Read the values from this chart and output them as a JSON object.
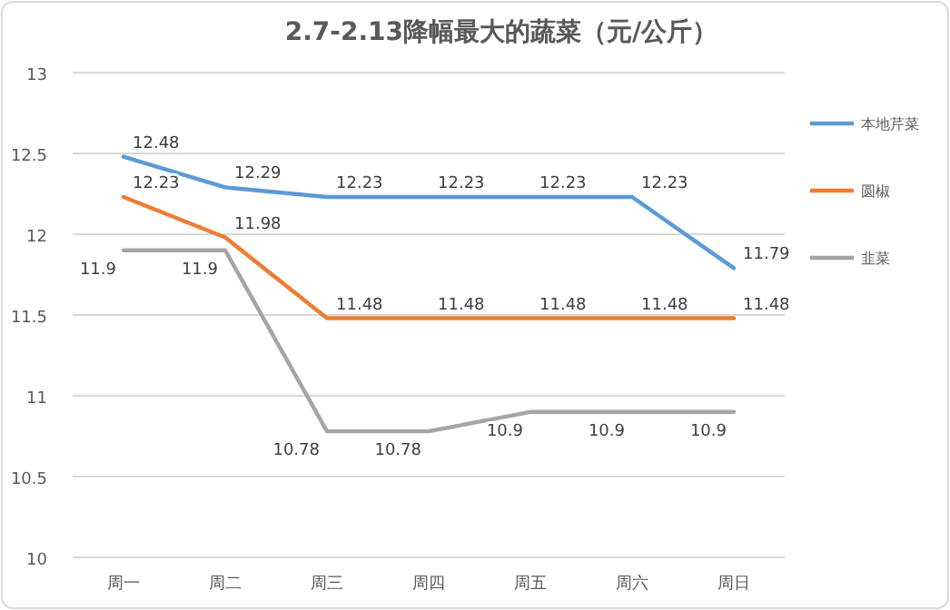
{
  "chart_data": {
    "type": "line",
    "title": "2.7-2.13降幅最大的蔬菜（元/公斤）",
    "categories": [
      "周一",
      "周二",
      "周三",
      "周四",
      "周五",
      "周六",
      "周日"
    ],
    "series": [
      {
        "name": "本地芹菜",
        "color": "#5b9bd5",
        "values": [
          12.48,
          12.29,
          12.23,
          12.23,
          12.23,
          12.23,
          11.79
        ]
      },
      {
        "name": "圆椒",
        "color": "#ed7d31",
        "values": [
          12.23,
          11.98,
          11.48,
          11.48,
          11.48,
          11.48,
          11.48
        ]
      },
      {
        "name": "韭菜",
        "color": "#a5a5a5",
        "values": [
          11.9,
          11.9,
          10.78,
          10.78,
          10.9,
          10.9,
          10.9
        ]
      }
    ],
    "ylim": [
      10,
      13
    ],
    "yticks": [
      10,
      10.5,
      11,
      11.5,
      12,
      12.5,
      13
    ],
    "grid": "y",
    "legend": "right",
    "data_labels": true,
    "marker": "none",
    "line_style": "solid"
  }
}
